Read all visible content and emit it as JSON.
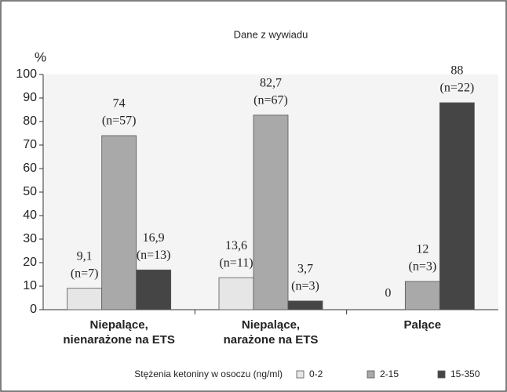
{
  "chart_data": {
    "type": "bar",
    "title": "Dane z wywiadu",
    "y_label": "%",
    "categories": [
      [
        "Niepalące,",
        "nienarażone na ETS"
      ],
      [
        "Niepalące,",
        "narażone na ETS"
      ],
      [
        "Palące"
      ]
    ],
    "legend_title": "Stężenia ketoniny w osoczu (ng/ml)",
    "series": [
      {
        "name": "0-2",
        "color": "#e6e6e6",
        "values": [
          9.1,
          13.6,
          0
        ],
        "value_labels": [
          "9,1",
          "13,6",
          "0"
        ],
        "n_labels": [
          "(n=7)",
          "(n=11)",
          null
        ]
      },
      {
        "name": "2-15",
        "color": "#a9a9a9",
        "values": [
          74,
          82.7,
          12
        ],
        "value_labels": [
          "74",
          "82,7",
          "12"
        ],
        "n_labels": [
          "(n=57)",
          "(n=67)",
          "(n=3)"
        ]
      },
      {
        "name": "15-350",
        "color": "#454545",
        "values": [
          16.9,
          3.7,
          88
        ],
        "value_labels": [
          "16,9",
          "3,7",
          "88"
        ],
        "n_labels": [
          "(n=13)",
          "(n=3)",
          "(n=22)"
        ]
      }
    ],
    "ylim": [
      0,
      100
    ],
    "yticks": [
      0,
      10,
      20,
      30,
      40,
      50,
      60,
      70,
      80,
      90,
      100
    ],
    "grid": false
  }
}
